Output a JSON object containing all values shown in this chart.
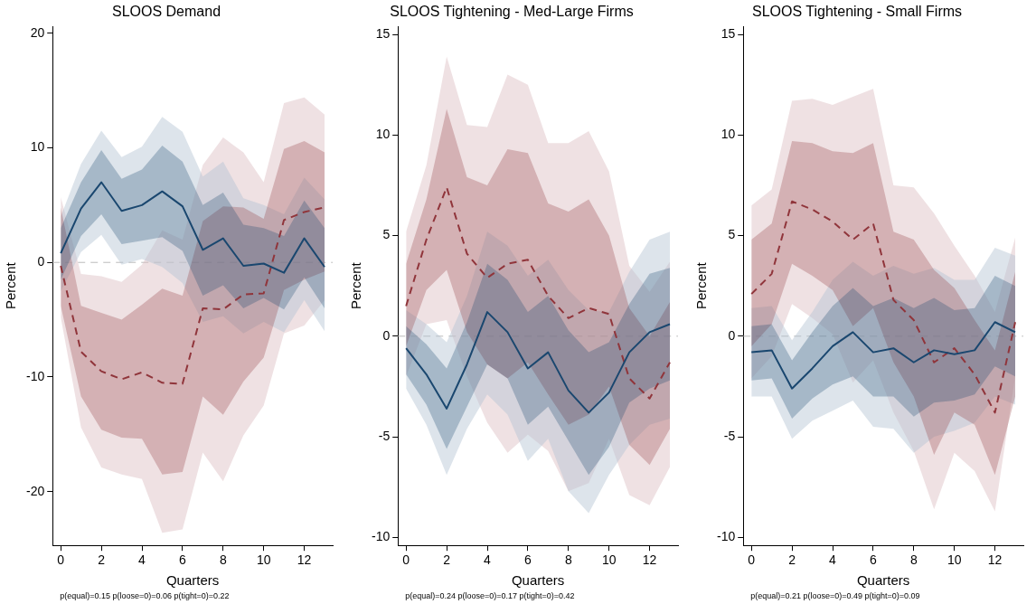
{
  "chart_data": [
    {
      "type": "line",
      "title": "SLOOS Demand",
      "xlabel": "Quarters",
      "ylabel": "Percent",
      "annotations": [
        "p(equal)=0.15 p(loose=0)=0.06 p(tight=0)=0.22"
      ],
      "x": [
        0,
        1,
        2,
        3,
        4,
        5,
        6,
        7,
        8,
        9,
        10,
        11,
        12,
        13
      ],
      "xlim": [
        -0.4,
        13.4
      ],
      "xticks": [
        0,
        2,
        4,
        6,
        8,
        10,
        12
      ],
      "ylim": [
        -24.7,
        20.6
      ],
      "yticks": [
        -20,
        -10,
        0,
        10,
        20
      ],
      "grid": false,
      "legend": false,
      "ref_lines": [
        {
          "axis": "y",
          "value": 0,
          "color": "#bbbbbb",
          "line_style": "dashed"
        }
      ],
      "series": [
        {
          "type": "line",
          "color": "#b4c4d2",
          "values": [
            null,
            null,
            null,
            null,
            null,
            null,
            null,
            null,
            null,
            null,
            null,
            null,
            null,
            null
          ],
          "upper": [
            4.0,
            8.6,
            11.5,
            9.2,
            10.1,
            12.7,
            11.4,
            7.5,
            8.8,
            5.6,
            5.0,
            4.2,
            7.4,
            5.5
          ],
          "lower": [
            -2.5,
            0.9,
            2.4,
            -0.2,
            0.3,
            -0.4,
            -1.8,
            -5.2,
            -4.7,
            -6.2,
            -5.2,
            -6.1,
            -3.3,
            -6.0
          ]
        },
        {
          "type": "line",
          "color": "#dcbcc1",
          "values": [
            null,
            null,
            null,
            null,
            null,
            null,
            null,
            null,
            null,
            null,
            null,
            null,
            null,
            null
          ],
          "upper": [
            5.7,
            -1.0,
            -1.2,
            -1.7,
            -0.2,
            2.8,
            2.0,
            8.5,
            10.9,
            9.6,
            7.0,
            13.9,
            14.4,
            12.9
          ],
          "lower": [
            -4.8,
            -14.4,
            -17.9,
            -18.5,
            -18.9,
            -23.6,
            -23.3,
            -16.6,
            -19.1,
            -15.1,
            -12.5,
            -6.2,
            -5.5,
            -3.3
          ]
        },
        {
          "type": "line",
          "color": "#1a476f",
          "line_style": "solid",
          "values": [
            0.8,
            4.7,
            7.0,
            4.5,
            5.0,
            6.2,
            4.9,
            1.1,
            2.1,
            -0.3,
            -0.1,
            -0.9,
            2.1,
            -0.4
          ],
          "lower": [
            -1.5,
            2.3,
            4.2,
            1.6,
            1.9,
            2.2,
            1.0,
            -2.9,
            -2.0,
            -4.0,
            -3.1,
            -4.1,
            -1.3,
            -4.0
          ],
          "upper": [
            3.0,
            7.0,
            9.8,
            7.3,
            8.1,
            10.2,
            8.8,
            5.0,
            6.1,
            3.3,
            3.0,
            2.3,
            5.4,
            3.0
          ]
        },
        {
          "type": "line",
          "color": "#90353b",
          "line_style": "dashed",
          "values": [
            -0.3,
            -7.8,
            -9.5,
            -10.2,
            -9.6,
            -10.5,
            -10.6,
            -4.0,
            -4.1,
            -2.8,
            -2.7,
            3.7,
            4.4,
            4.8
          ],
          "lower": [
            -3.8,
            -11.7,
            -14.6,
            -15.3,
            -15.4,
            -18.5,
            -18.3,
            -11.7,
            -13.3,
            -10.4,
            -8.3,
            -2.4,
            -1.5,
            -0.8
          ],
          "upper": [
            4.8,
            -3.8,
            -4.4,
            -5.0,
            -3.7,
            -2.3,
            -2.9,
            3.6,
            4.9,
            4.8,
            3.8,
            9.9,
            10.6,
            9.6
          ]
        }
      ]
    },
    {
      "type": "line",
      "title": "SLOOS Tightening - Med-Large Firms",
      "xlabel": "Quarters",
      "ylabel": "Percent",
      "annotations": [
        "p(equal)=0.24 p(loose=0)=0.17 p(tight=0)=0.42"
      ],
      "x": [
        0,
        1,
        2,
        3,
        4,
        5,
        6,
        7,
        8,
        9,
        10,
        11,
        12,
        13
      ],
      "xlim": [
        -0.4,
        13.4
      ],
      "xticks": [
        0,
        2,
        4,
        6,
        8,
        10,
        12
      ],
      "ylim": [
        -10.4,
        15.4
      ],
      "yticks": [
        -10,
        -5,
        0,
        5,
        10,
        15
      ],
      "grid": false,
      "legend": false,
      "ref_lines": [
        {
          "axis": "y",
          "value": 0,
          "color": "#bbbbbb",
          "line_style": "dashed"
        }
      ],
      "series": [
        {
          "type": "line",
          "color": "#b4c4d2",
          "values": [
            null,
            null,
            null,
            null,
            null,
            null,
            null,
            null,
            null,
            null,
            null,
            null,
            null,
            null
          ],
          "upper": [
            1.3,
            0.6,
            -0.3,
            2.0,
            5.2,
            4.5,
            3.0,
            3.8,
            2.3,
            1.3,
            1.2,
            3.2,
            4.8,
            5.2
          ],
          "lower": [
            -2.6,
            -4.4,
            -6.9,
            -4.6,
            -2.9,
            -3.9,
            -6.2,
            -5.1,
            -7.7,
            -8.8,
            -6.9,
            -5.4,
            -4.4,
            -4.1
          ]
        },
        {
          "type": "line",
          "color": "#dcbcc1",
          "values": [
            null,
            null,
            null,
            null,
            null,
            null,
            null,
            null,
            null,
            null,
            null,
            null,
            null,
            null
          ],
          "upper": [
            5.2,
            8.5,
            13.9,
            10.5,
            10.4,
            13.0,
            12.5,
            9.6,
            9.6,
            10.2,
            8.2,
            3.5,
            2.2,
            3.7
          ],
          "lower": [
            -2.0,
            0.6,
            0.8,
            -2.0,
            -4.3,
            -5.8,
            -4.9,
            -5.7,
            -7.7,
            -7.3,
            -5.1,
            -7.9,
            -8.4,
            -6.5
          ]
        },
        {
          "type": "line",
          "color": "#1a476f",
          "line_style": "solid",
          "values": [
            -0.6,
            -1.9,
            -3.6,
            -1.4,
            1.2,
            0.2,
            -1.6,
            -0.8,
            -2.7,
            -3.8,
            -2.8,
            -0.8,
            0.2,
            0.6
          ],
          "lower": [
            -1.9,
            -3.4,
            -5.6,
            -3.5,
            -1.4,
            -2.1,
            -4.4,
            -3.5,
            -5.2,
            -6.9,
            -5.5,
            -3.3,
            -2.6,
            -2.2
          ],
          "upper": [
            0.5,
            -0.4,
            -1.6,
            0.7,
            3.6,
            2.8,
            1.2,
            2.0,
            0.3,
            -0.8,
            -0.3,
            1.6,
            3.1,
            3.4
          ]
        },
        {
          "type": "line",
          "color": "#90353b",
          "line_style": "dashed",
          "values": [
            1.5,
            4.8,
            7.4,
            4.1,
            2.9,
            3.6,
            3.8,
            2.0,
            0.9,
            1.4,
            1.1,
            -2.1,
            -3.1,
            -1.3
          ],
          "lower": [
            -0.5,
            2.3,
            3.3,
            0.2,
            -1.4,
            -2.1,
            -1.3,
            -2.9,
            -4.4,
            -3.9,
            -2.5,
            -5.4,
            -6.4,
            -4.6
          ],
          "upper": [
            3.6,
            6.8,
            11.3,
            7.9,
            7.5,
            9.3,
            9.1,
            6.6,
            6.2,
            6.8,
            5.0,
            1.4,
            0.0,
            1.7
          ]
        }
      ]
    },
    {
      "type": "line",
      "title": "SLOOS Tightening - Small Firms",
      "xlabel": "Quarters",
      "ylabel": "Percent",
      "annotations": [
        "p(equal)=0.21 p(loose=0)=0.49 p(tight=0)=0.09"
      ],
      "x": [
        0,
        1,
        2,
        3,
        4,
        5,
        6,
        7,
        8,
        9,
        10,
        11,
        12,
        13
      ],
      "xlim": [
        -0.4,
        13.4
      ],
      "xticks": [
        0,
        2,
        4,
        6,
        8,
        10,
        12
      ],
      "ylim": [
        -10.4,
        15.4
      ],
      "yticks": [
        -10,
        -5,
        0,
        5,
        10,
        15
      ],
      "grid": false,
      "legend": false,
      "ref_lines": [
        {
          "axis": "y",
          "value": 0,
          "color": "#bbbbbb",
          "line_style": "dashed"
        }
      ],
      "series": [
        {
          "type": "line",
          "color": "#b4c4d2",
          "values": [
            null,
            null,
            null,
            null,
            null,
            null,
            null,
            null,
            null,
            null,
            null,
            null,
            null,
            null
          ],
          "upper": [
            1.4,
            1.5,
            -0.2,
            1.2,
            2.8,
            3.7,
            3.0,
            3.5,
            3.1,
            3.4,
            2.8,
            2.8,
            4.4,
            4.0
          ],
          "lower": [
            -3.0,
            -3.0,
            -5.1,
            -4.2,
            -3.7,
            -3.2,
            -4.5,
            -4.6,
            -5.8,
            -5.0,
            -4.7,
            -4.3,
            -3.0,
            -3.4
          ]
        },
        {
          "type": "line",
          "color": "#dcbcc1",
          "values": [
            null,
            null,
            null,
            null,
            null,
            null,
            null,
            null,
            null,
            null,
            null,
            null,
            null,
            null
          ],
          "upper": [
            6.5,
            7.3,
            11.7,
            11.8,
            11.5,
            11.9,
            12.3,
            7.5,
            7.4,
            6.1,
            4.5,
            3.0,
            1.2,
            4.9
          ],
          "lower": [
            -2.1,
            -1.0,
            1.6,
            0.9,
            0.1,
            -2.3,
            -1.2,
            -3.8,
            -5.7,
            -8.6,
            -5.8,
            -6.7,
            -8.7,
            -2.0
          ]
        },
        {
          "type": "line",
          "color": "#1a476f",
          "line_style": "solid",
          "values": [
            -0.8,
            -0.7,
            -2.6,
            -1.6,
            -0.5,
            0.2,
            -0.8,
            -0.6,
            -1.3,
            -0.7,
            -0.9,
            -0.7,
            0.7,
            0.2
          ],
          "lower": [
            -2.2,
            -2.1,
            -4.1,
            -3.1,
            -2.4,
            -2.0,
            -3.0,
            -3.0,
            -4.0,
            -3.3,
            -3.2,
            -2.9,
            -1.5,
            -2.0
          ],
          "upper": [
            0.5,
            0.6,
            -1.2,
            0.2,
            1.5,
            2.4,
            1.5,
            1.9,
            1.4,
            1.9,
            1.3,
            1.4,
            3.0,
            2.5
          ]
        },
        {
          "type": "line",
          "color": "#90353b",
          "line_style": "dashed",
          "values": [
            2.1,
            3.1,
            6.7,
            6.3,
            5.7,
            4.8,
            5.6,
            1.8,
            0.8,
            -1.3,
            -0.6,
            -1.9,
            -3.8,
            0.7
          ],
          "lower": [
            -0.5,
            0.6,
            3.6,
            3.0,
            2.3,
            0.5,
            1.4,
            -1.3,
            -3.0,
            -5.9,
            -3.8,
            -4.4,
            -6.9,
            -3.0
          ],
          "upper": [
            4.8,
            5.6,
            9.7,
            9.6,
            9.2,
            9.1,
            9.6,
            5.2,
            4.8,
            3.3,
            2.4,
            0.8,
            -0.7,
            3.2
          ]
        }
      ]
    }
  ]
}
